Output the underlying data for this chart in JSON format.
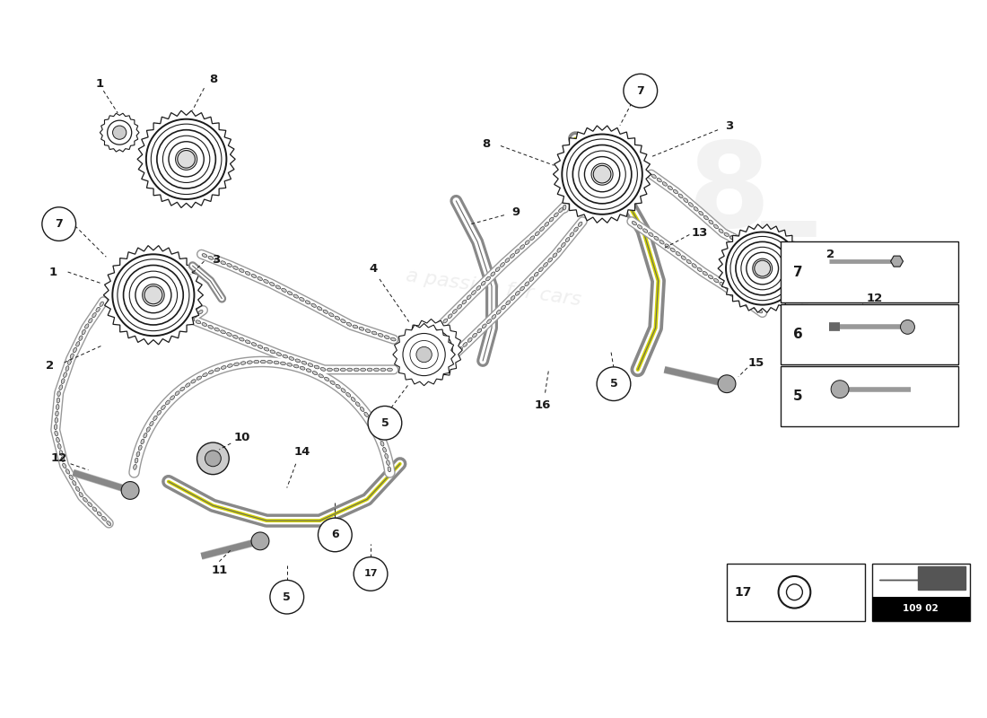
{
  "background_color": "#ffffff",
  "line_color": "#1a1a1a",
  "chain_color": "#555555",
  "sprocket_color": "#888888",
  "guide_color": "#aaaaaa",
  "highlight_color": "#d4d400",
  "page_code": "109 02",
  "watermark_opacity": 0.18
}
